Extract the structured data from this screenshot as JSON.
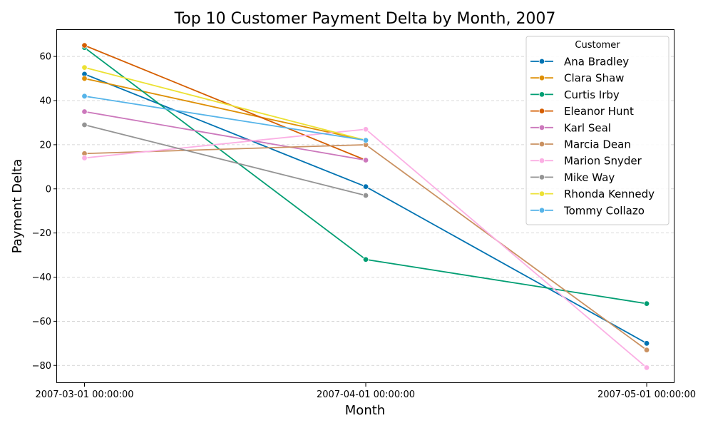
{
  "chart_data": {
    "type": "line",
    "title": "Top 10 Customer Payment Delta by Month, 2007",
    "xlabel": "Month",
    "ylabel": "Payment Delta",
    "x": [
      "2007-03-01 00:00:00",
      "2007-04-01 00:00:00",
      "2007-05-01 00:00:00"
    ],
    "yticks": [
      -80,
      -60,
      -40,
      -20,
      0,
      20,
      40,
      60
    ],
    "ylim": [
      -88,
      72
    ],
    "grid": "horizontal dashed",
    "legend": {
      "title": "Customer",
      "placement": "top-right"
    },
    "series": [
      {
        "name": "Ana Bradley",
        "color": "#0173b2",
        "values": [
          52,
          1,
          -70
        ]
      },
      {
        "name": "Clara Shaw",
        "color": "#de8f05",
        "values": [
          50,
          22,
          null
        ]
      },
      {
        "name": "Curtis Irby",
        "color": "#029e73",
        "values": [
          64,
          -32,
          -52
        ]
      },
      {
        "name": "Eleanor Hunt",
        "color": "#d55e00",
        "values": [
          65,
          13,
          null
        ]
      },
      {
        "name": "Karl Seal",
        "color": "#cc78bc",
        "values": [
          35,
          13,
          null
        ]
      },
      {
        "name": "Marcia Dean",
        "color": "#ca9161",
        "values": [
          16,
          20,
          -73
        ]
      },
      {
        "name": "Marion Snyder",
        "color": "#fbafe4",
        "values": [
          14,
          27,
          -81
        ]
      },
      {
        "name": "Mike Way",
        "color": "#949494",
        "values": [
          29,
          -3,
          null
        ]
      },
      {
        "name": "Rhonda Kennedy",
        "color": "#ece133",
        "values": [
          55,
          22,
          null
        ]
      },
      {
        "name": "Tommy Collazo",
        "color": "#56b4e9",
        "values": [
          42,
          22,
          null
        ]
      }
    ]
  }
}
